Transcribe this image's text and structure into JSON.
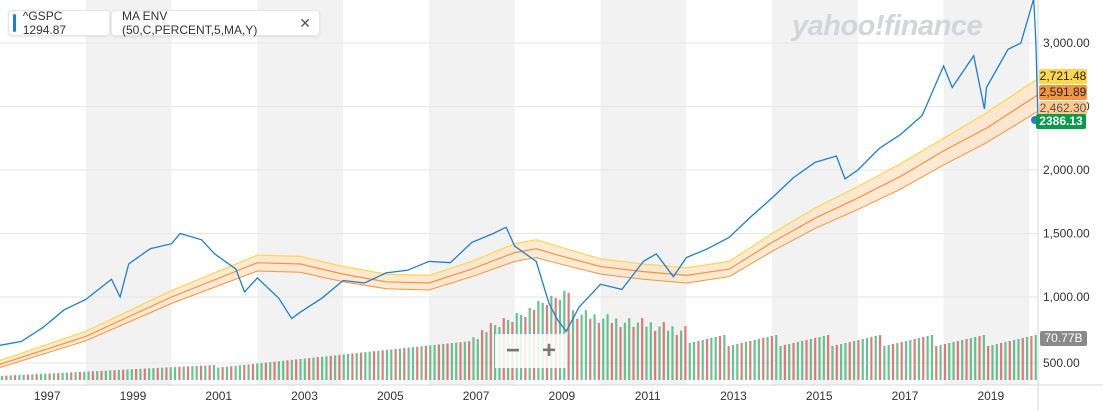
{
  "legend": {
    "symbol_chip": "^GSPC  1294.87",
    "indicator_chip": "MA ENV (50,C,PERCENT,5,MA,Y)",
    "close_glyph": "✕"
  },
  "brand": "yahoo!finance",
  "tags": {
    "upper": "2,721.48",
    "mid": "2,591.89",
    "lower": "2,462.30",
    "price": "2386.13",
    "volume": "70.77B"
  },
  "zoom": {
    "out_label": "−",
    "in_label": "+"
  },
  "colors": {
    "price_line": "#1b7fd6",
    "envelope_upper": "#ffd74a",
    "envelope_mid": "#f6943f",
    "envelope_fill": "#fde1c4",
    "volume_up": "#33b06f",
    "volume_down": "#e34a4a",
    "band_shade": "#f2f2f2"
  },
  "chart_data": {
    "type": "line",
    "y_ticks": [
      "3,000.00",
      "2,500.00",
      "2,000.00",
      "1,500.00",
      "1,000.00",
      "500.00"
    ],
    "x_ticks": [
      "1997",
      "1999",
      "2001",
      "2003",
      "2005",
      "2007",
      "2009",
      "2011",
      "2013",
      "2015",
      "2017",
      "2019"
    ],
    "ylim": [
      400,
      3300
    ],
    "xlim": [
      1996.0,
      2020.2
    ],
    "series": [
      {
        "name": "^GSPC",
        "x": [
          1996.0,
          1996.5,
          1997.0,
          1997.5,
          1998.0,
          1998.6,
          1998.8,
          1999.0,
          1999.5,
          2000.0,
          2000.2,
          2000.7,
          2001.0,
          2001.5,
          2001.7,
          2002.0,
          2002.5,
          2002.8,
          2003.0,
          2003.5,
          2004.0,
          2004.5,
          2005.0,
          2005.5,
          2006.0,
          2006.5,
          2007.0,
          2007.5,
          2007.8,
          2008.0,
          2008.5,
          2008.8,
          2009.0,
          2009.2,
          2009.5,
          2010.0,
          2010.5,
          2011.0,
          2011.3,
          2011.7,
          2012.0,
          2012.5,
          2013.0,
          2013.5,
          2014.0,
          2014.5,
          2015.0,
          2015.5,
          2015.7,
          2016.0,
          2016.5,
          2017.0,
          2017.5,
          2018.0,
          2018.2,
          2018.7,
          2018.95,
          2019.0,
          2019.5,
          2019.8,
          2020.0,
          2020.1,
          2020.15,
          2020.2
        ],
        "values": [
          620,
          650,
          760,
          900,
          980,
          1140,
          1000,
          1260,
          1380,
          1420,
          1500,
          1450,
          1340,
          1220,
          1040,
          1150,
          990,
          830,
          880,
          990,
          1130,
          1110,
          1190,
          1210,
          1280,
          1270,
          1430,
          1500,
          1550,
          1400,
          1280,
          950,
          820,
          730,
          920,
          1100,
          1060,
          1280,
          1340,
          1160,
          1310,
          1380,
          1470,
          1630,
          1780,
          1940,
          2060,
          2110,
          1930,
          2000,
          2170,
          2280,
          2430,
          2820,
          2650,
          2900,
          2480,
          2650,
          2950,
          3000,
          3230,
          3350,
          3000,
          2386
        ]
      },
      {
        "name": "MA ENV upper",
        "x": [
          1996.0,
          1998.0,
          2000.0,
          2002.0,
          2003.0,
          2004.0,
          2005.0,
          2006.0,
          2007.0,
          2008.0,
          2008.5,
          2009.0,
          2010.0,
          2011.0,
          2012.0,
          2013.0,
          2014.0,
          2015.0,
          2016.0,
          2017.0,
          2018.0,
          2019.0,
          2020.2
        ],
        "values": [
          500,
          730,
          1050,
          1330,
          1320,
          1240,
          1180,
          1170,
          1280,
          1420,
          1450,
          1400,
          1300,
          1260,
          1230,
          1280,
          1500,
          1700,
          1870,
          2050,
          2250,
          2450,
          2721
        ]
      },
      {
        "name": "MA ENV mid",
        "x": [
          1996.0,
          1998.0,
          2000.0,
          2002.0,
          2003.0,
          2004.0,
          2005.0,
          2006.0,
          2007.0,
          2008.0,
          2008.5,
          2009.0,
          2010.0,
          2011.0,
          2012.0,
          2013.0,
          2014.0,
          2015.0,
          2016.0,
          2017.0,
          2018.0,
          2019.0,
          2020.2
        ],
        "values": [
          470,
          690,
          1000,
          1270,
          1260,
          1180,
          1120,
          1110,
          1220,
          1350,
          1380,
          1330,
          1240,
          1200,
          1170,
          1220,
          1430,
          1620,
          1780,
          1950,
          2150,
          2330,
          2592
        ]
      },
      {
        "name": "MA ENV lower",
        "x": [
          1996.0,
          1998.0,
          2000.0,
          2002.0,
          2003.0,
          2004.0,
          2005.0,
          2006.0,
          2007.0,
          2008.0,
          2008.5,
          2009.0,
          2010.0,
          2011.0,
          2012.0,
          2013.0,
          2014.0,
          2015.0,
          2016.0,
          2017.0,
          2018.0,
          2019.0,
          2020.2
        ],
        "values": [
          445,
          655,
          950,
          1205,
          1195,
          1120,
          1065,
          1055,
          1160,
          1280,
          1310,
          1265,
          1180,
          1140,
          1110,
          1160,
          1360,
          1540,
          1690,
          1850,
          2040,
          2215,
          2462
        ]
      }
    ]
  }
}
